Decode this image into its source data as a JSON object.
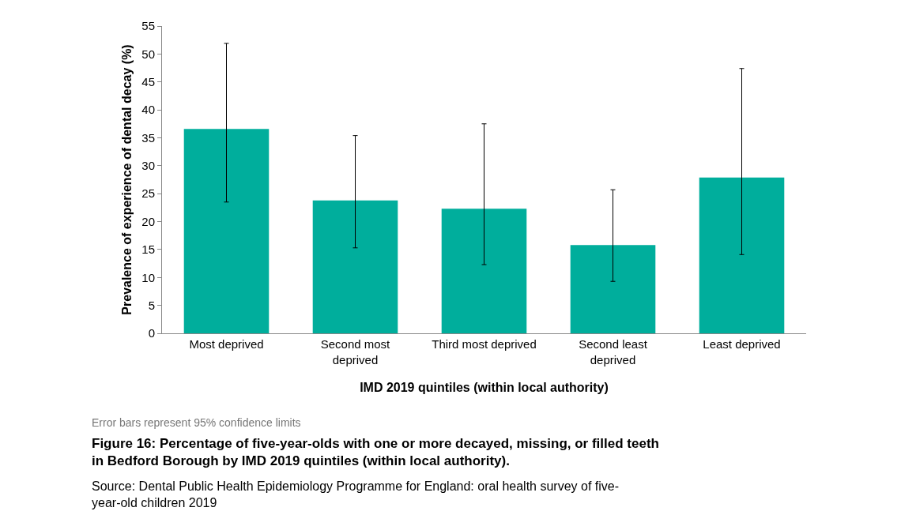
{
  "chart_data": {
    "type": "bar",
    "title": "Figure 16: Percentage of five-year-olds with one or more decayed, missing, or filled teeth in Bedford Borough by IMD 2019 quintiles (within local authority).",
    "xlabel": "IMD 2019 quintiles (within local authority)",
    "ylabel": "Prevalence of experience of dental decay (%)",
    "categories": [
      "Most deprived",
      "Second most deprived",
      "Third most deprived",
      "Second least deprived",
      "Least deprived"
    ],
    "values": [
      36.6,
      23.8,
      22.3,
      15.8,
      27.9
    ],
    "errors": [
      [
        23.5,
        51.9
      ],
      [
        15.3,
        35.4
      ],
      [
        12.3,
        37.5
      ],
      [
        9.3,
        25.7
      ],
      [
        14.1,
        47.4
      ]
    ],
    "color": "#00ae9c",
    "ylim": [
      0,
      55
    ],
    "yticks": [
      0,
      5,
      10,
      15,
      20,
      25,
      30,
      35,
      40,
      45,
      50,
      55
    ],
    "legend": false,
    "annotations": [
      "Error bars represent 95% confidence limits",
      "Source: Dental Public Health Epidemiology Programme for England: oral health survey of five-year-old children 2019"
    ]
  }
}
